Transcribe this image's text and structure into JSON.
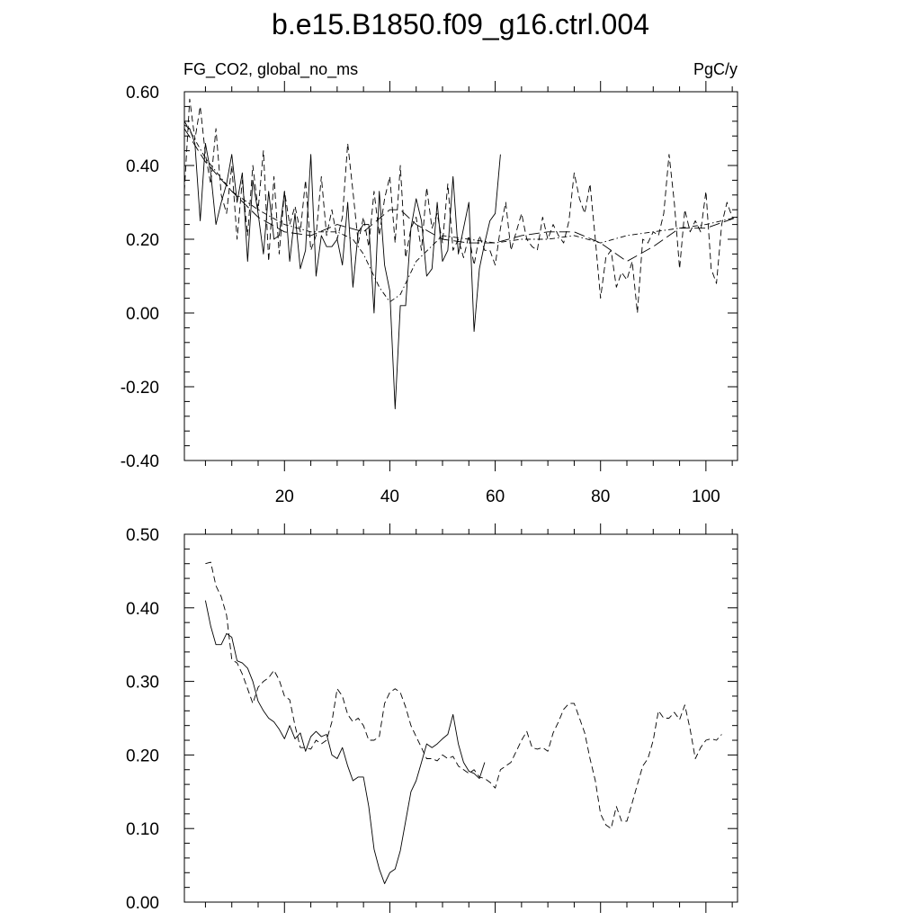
{
  "figure": {
    "title": "b.e15.B1850.f09_g16.ctrl.004"
  },
  "chart_data": [
    {
      "type": "line",
      "left_label": "FG_CO2, global_no_ms",
      "right_label": "PgC/y",
      "xlim": [
        1,
        106
      ],
      "ylim": [
        -0.4,
        0.6
      ],
      "y_ticks": [
        -0.4,
        -0.2,
        0.0,
        0.2,
        0.4,
        0.6
      ],
      "y_tick_labels": [
        "-0.40",
        "-0.20",
        "0.00",
        "0.20",
        "0.40",
        "0.60"
      ],
      "x_ticks": [
        20,
        40,
        60,
        80,
        100
      ],
      "x_tick_labels": [
        "20",
        "40",
        "60",
        "80",
        "100"
      ],
      "series": [
        {
          "style": "solid",
          "x": [
            1,
            2,
            3,
            4,
            5,
            6,
            7,
            8,
            9,
            10,
            11,
            12,
            13,
            14,
            15,
            16,
            17,
            18,
            19,
            20,
            21,
            22,
            23,
            24,
            25,
            26,
            27,
            28,
            29,
            30,
            31,
            32,
            33,
            34,
            35,
            36,
            37,
            38,
            39,
            40,
            41,
            42,
            43,
            44,
            45,
            46,
            47,
            48,
            49,
            50,
            51,
            52,
            53,
            54,
            55,
            56,
            57,
            58,
            59,
            60,
            61
          ],
          "y": [
            0.51,
            0.5,
            0.46,
            0.25,
            0.46,
            0.38,
            0.24,
            0.3,
            0.35,
            0.43,
            0.3,
            0.38,
            0.14,
            0.36,
            0.27,
            0.16,
            0.33,
            0.2,
            0.21,
            0.33,
            0.14,
            0.27,
            0.12,
            0.17,
            0.43,
            0.1,
            0.21,
            0.18,
            0.18,
            0.2,
            0.13,
            0.3,
            0.07,
            0.22,
            0.24,
            0.24,
            0.0,
            0.33,
            0.13,
            0.06,
            -0.26,
            0.02,
            0.02,
            0.23,
            0.31,
            0.25,
            0.1,
            0.12,
            0.3,
            0.14,
            0.17,
            0.37,
            0.16,
            0.23,
            0.3,
            -0.05,
            0.12,
            0.19,
            0.25,
            0.27,
            0.43
          ]
        },
        {
          "style": "dashed",
          "x": [
            1,
            2,
            3,
            4,
            5,
            6,
            7,
            8,
            9,
            10,
            11,
            12,
            13,
            14,
            15,
            16,
            17,
            18,
            19,
            20,
            21,
            22,
            23,
            24,
            25,
            26,
            27,
            28,
            29,
            30,
            31,
            32,
            33,
            34,
            35,
            36,
            37,
            38,
            39,
            40,
            41,
            42,
            43,
            44,
            45,
            46,
            47,
            48,
            49,
            50,
            51,
            52,
            53,
            54,
            55,
            56,
            57,
            58,
            59,
            60,
            61,
            62,
            63,
            64,
            65,
            66,
            67,
            68,
            69,
            70,
            71,
            72,
            73,
            74,
            75,
            76,
            77,
            78,
            79,
            80,
            81,
            82,
            83,
            84,
            85,
            86,
            87,
            88,
            89,
            90,
            91,
            92,
            93,
            94,
            95,
            96,
            97,
            98,
            99,
            100,
            101,
            102,
            103,
            104,
            105,
            106
          ],
          "y": [
            0.33,
            0.58,
            0.47,
            0.56,
            0.43,
            0.35,
            0.5,
            0.32,
            0.27,
            0.4,
            0.2,
            0.36,
            0.21,
            0.4,
            0.28,
            0.44,
            0.14,
            0.37,
            0.16,
            0.33,
            0.24,
            0.29,
            0.22,
            0.36,
            0.17,
            0.21,
            0.37,
            0.21,
            0.28,
            0.2,
            0.26,
            0.46,
            0.33,
            0.19,
            0.26,
            0.18,
            0.33,
            0.21,
            0.31,
            0.37,
            0.19,
            0.4,
            0.15,
            0.23,
            0.26,
            0.17,
            0.34,
            0.23,
            0.27,
            0.19,
            0.35,
            0.17,
            0.2,
            0.15,
            0.21,
            0.13,
            0.21,
            0.17,
            0.17,
            0.13,
            0.23,
            0.3,
            0.17,
            0.22,
            0.27,
            0.2,
            0.18,
            0.17,
            0.26,
            0.2,
            0.24,
            0.21,
            0.19,
            0.25,
            0.38,
            0.31,
            0.27,
            0.35,
            0.2,
            0.04,
            0.15,
            0.17,
            0.07,
            0.11,
            0.09,
            0.14,
            0.0,
            0.2,
            0.19,
            0.22,
            0.21,
            0.27,
            0.43,
            0.3,
            0.12,
            0.28,
            0.22,
            0.25,
            0.22,
            0.33,
            0.12,
            0.08,
            0.24,
            0.3,
            0.26,
            0.26
          ]
        },
        {
          "style": "dash-dot",
          "x": [
            1,
            5,
            10,
            15,
            20,
            25,
            30,
            33,
            35,
            38,
            40,
            42,
            45,
            50,
            55,
            60,
            65,
            70,
            75,
            80,
            85,
            90,
            95,
            100,
            106
          ],
          "y": [
            0.52,
            0.42,
            0.33,
            0.28,
            0.24,
            0.22,
            0.22,
            0.2,
            0.16,
            0.07,
            0.03,
            0.05,
            0.14,
            0.21,
            0.2,
            0.19,
            0.2,
            0.2,
            0.21,
            0.19,
            0.21,
            0.22,
            0.23,
            0.24,
            0.26
          ]
        },
        {
          "style": "long-dash",
          "x": [
            1,
            5,
            10,
            15,
            20,
            25,
            30,
            35,
            40,
            42,
            45,
            50,
            55,
            60,
            65,
            70,
            75,
            80,
            85,
            90,
            95,
            100,
            106
          ],
          "y": [
            0.5,
            0.41,
            0.33,
            0.26,
            0.22,
            0.21,
            0.24,
            0.22,
            0.28,
            0.28,
            0.24,
            0.2,
            0.19,
            0.19,
            0.21,
            0.22,
            0.22,
            0.19,
            0.14,
            0.18,
            0.23,
            0.23,
            0.26
          ]
        }
      ]
    },
    {
      "type": "line",
      "xlim": [
        1,
        106
      ],
      "ylim": [
        0.0,
        0.5
      ],
      "y_ticks": [
        0.0,
        0.1,
        0.2,
        0.3,
        0.4,
        0.5
      ],
      "y_tick_labels": [
        "0.00",
        "0.10",
        "0.20",
        "0.30",
        "0.40",
        "0.50"
      ],
      "x_ticks": [
        20,
        40,
        60,
        80,
        100
      ],
      "series": [
        {
          "style": "solid",
          "x": [
            5,
            6,
            7,
            8,
            9,
            10,
            11,
            12,
            13,
            14,
            15,
            16,
            17,
            18,
            19,
            20,
            21,
            22,
            23,
            24,
            25,
            26,
            27,
            28,
            29,
            30,
            31,
            32,
            33,
            34,
            35,
            36,
            37,
            38,
            39,
            40,
            41,
            42,
            43,
            44,
            45,
            46,
            47,
            48,
            49,
            50,
            51,
            52,
            53,
            54,
            55,
            56,
            57,
            58
          ],
          "y": [
            0.41,
            0.375,
            0.35,
            0.35,
            0.365,
            0.36,
            0.328,
            0.325,
            0.318,
            0.3,
            0.273,
            0.26,
            0.25,
            0.245,
            0.235,
            0.222,
            0.24,
            0.222,
            0.23,
            0.205,
            0.225,
            0.232,
            0.225,
            0.228,
            0.2,
            0.195,
            0.21,
            0.185,
            0.165,
            0.17,
            0.17,
            0.13,
            0.072,
            0.045,
            0.025,
            0.04,
            0.045,
            0.07,
            0.11,
            0.15,
            0.165,
            0.19,
            0.215,
            0.21,
            0.215,
            0.222,
            0.228,
            0.255,
            0.215,
            0.19,
            0.178,
            0.175,
            0.168,
            0.19
          ]
        },
        {
          "style": "dashed",
          "x": [
            5,
            6,
            7,
            8,
            9,
            10,
            11,
            12,
            13,
            14,
            15,
            16,
            17,
            18,
            19,
            20,
            21,
            22,
            23,
            24,
            25,
            26,
            27,
            28,
            29,
            30,
            31,
            32,
            33,
            34,
            35,
            36,
            37,
            38,
            39,
            40,
            41,
            42,
            43,
            44,
            45,
            46,
            47,
            48,
            49,
            50,
            51,
            52,
            53,
            54,
            55,
            56,
            57,
            58,
            59,
            60,
            61,
            62,
            63,
            64,
            65,
            66,
            67,
            68,
            69,
            70,
            71,
            72,
            73,
            74,
            75,
            76,
            77,
            78,
            79,
            80,
            81,
            82,
            83,
            84,
            85,
            86,
            87,
            88,
            89,
            90,
            91,
            92,
            93,
            94,
            95,
            96,
            97,
            98,
            99,
            100,
            101,
            102,
            103
          ],
          "y": [
            0.46,
            0.462,
            0.43,
            0.415,
            0.39,
            0.33,
            0.325,
            0.31,
            0.29,
            0.27,
            0.292,
            0.3,
            0.305,
            0.315,
            0.302,
            0.28,
            0.275,
            0.24,
            0.21,
            0.21,
            0.208,
            0.22,
            0.215,
            0.22,
            0.245,
            0.29,
            0.28,
            0.255,
            0.245,
            0.25,
            0.24,
            0.22,
            0.22,
            0.225,
            0.27,
            0.285,
            0.29,
            0.285,
            0.265,
            0.24,
            0.225,
            0.21,
            0.195,
            0.195,
            0.192,
            0.2,
            0.195,
            0.198,
            0.185,
            0.18,
            0.175,
            0.18,
            0.17,
            0.168,
            0.163,
            0.155,
            0.18,
            0.185,
            0.19,
            0.205,
            0.22,
            0.232,
            0.21,
            0.208,
            0.21,
            0.205,
            0.23,
            0.245,
            0.262,
            0.27,
            0.27,
            0.25,
            0.23,
            0.195,
            0.165,
            0.12,
            0.105,
            0.1,
            0.13,
            0.11,
            0.11,
            0.135,
            0.16,
            0.185,
            0.195,
            0.22,
            0.26,
            0.25,
            0.25,
            0.258,
            0.248,
            0.268,
            0.235,
            0.195,
            0.21,
            0.22,
            0.222,
            0.22,
            0.228
          ]
        }
      ]
    }
  ]
}
